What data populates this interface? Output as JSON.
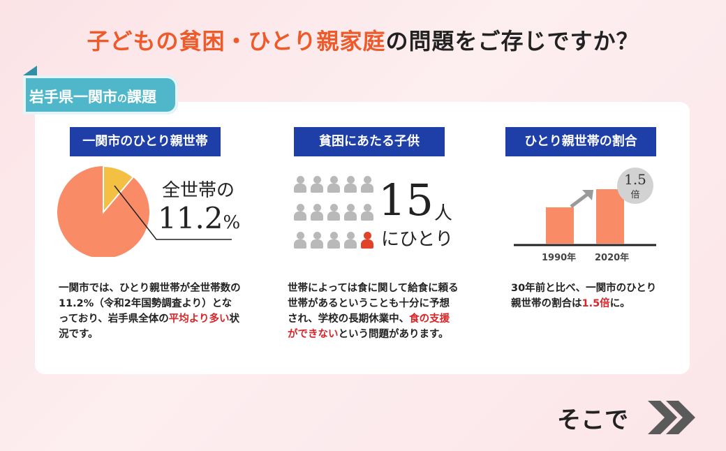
{
  "headline": {
    "part1": "子どもの貧困・ひとり親家庭",
    "part2": "の問題をご存じですか？"
  },
  "region_tag": {
    "main": "岩手県一関市",
    "no": "の",
    "tail": "課題"
  },
  "columns": [
    {
      "label": "一関市のひとり親世帯",
      "stat_prefix": "全世帯の",
      "stat_value": "11.2",
      "stat_unit": "%",
      "pie_fraction": 0.112,
      "desc_1": "一関市では、ひとり親世帯が全世帯数の11.2%（令和2年国勢調査より）となっており、岩手県全体の",
      "desc_red": "平均より多い",
      "desc_2": "状況です。"
    },
    {
      "label": "貧困にあたる子供",
      "count": "15",
      "unit": "人",
      "sub": "にひとり",
      "desc_1": "世帯によっては食に関して給食に頼る世帯があるということも十分に予想され、学校の長期休業中、",
      "desc_red": "食の支援ができない",
      "desc_2": "という問題があります。"
    },
    {
      "label": "ひとり親世帯の割合",
      "badge_value": "1.5",
      "badge_unit": "倍",
      "desc_1": "30年前と比べ、一関市のひとり親世帯の割合は",
      "desc_red": "1.5倍",
      "desc_2": "に。"
    }
  ],
  "chart_data": {
    "type": "bar",
    "categories": [
      "1990年",
      "2020年"
    ],
    "values": [
      1,
      1.5
    ],
    "title": "",
    "xlabel": "",
    "ylabel": ""
  },
  "next": {
    "label": "そこで"
  },
  "colors": {
    "accent_orange": "#ee5a2a",
    "label_navy": "#1f3fa8",
    "tag_teal": "#4fb7c9",
    "pie_main": "#f98b67",
    "pie_slice": "#f3c044",
    "bar": "#f98b67",
    "highlight_red": "#d6262a"
  }
}
